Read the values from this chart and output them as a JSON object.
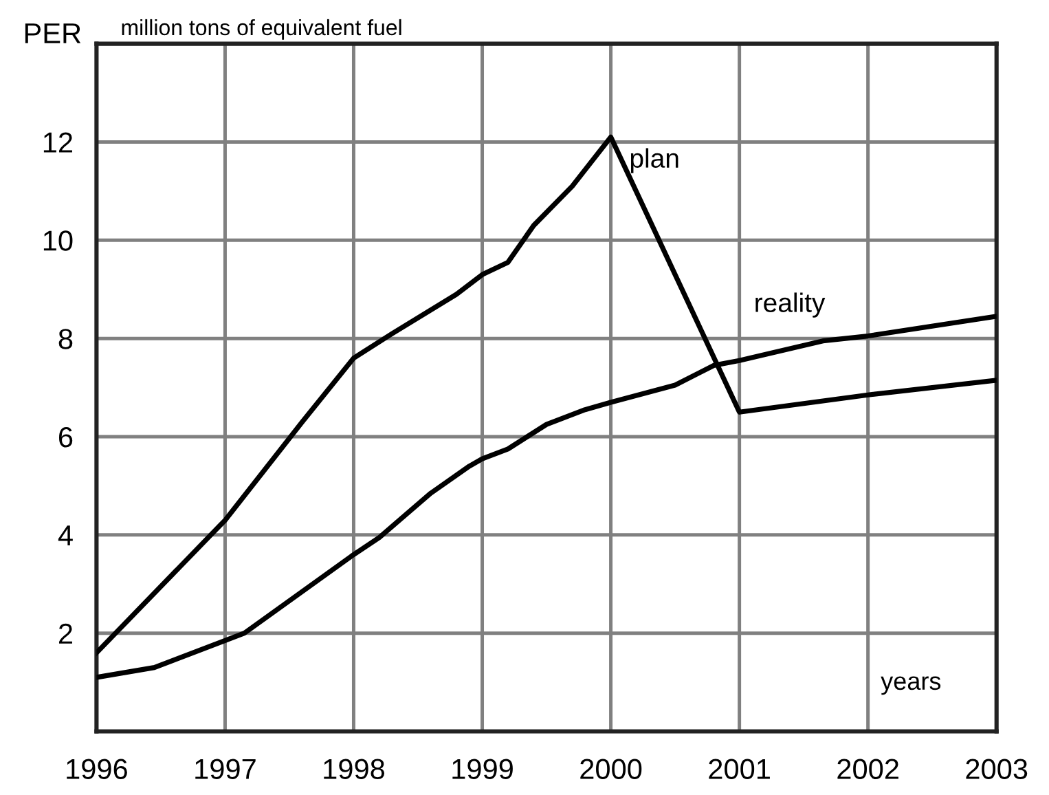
{
  "chart_data": {
    "type": "line",
    "ylabel": "PER",
    "subtitle": "million tons of equivalent fuel",
    "xlabel": "years",
    "xlim": [
      1996,
      2003
    ],
    "xticks": [
      1996,
      1997,
      1998,
      1999,
      2000,
      2001,
      2002,
      2003
    ],
    "ylim": [
      0,
      14
    ],
    "yticks": [
      {
        "value": 0,
        "label": null
      },
      2,
      4,
      6,
      8,
      10,
      12,
      {
        "value": 14,
        "label": null
      }
    ],
    "grid": true,
    "legend": false,
    "marker": "none",
    "line_style": "solid",
    "series": [
      {
        "name": "plan",
        "color": "#000000",
        "x": [
          1996,
          1997,
          1997.3,
          1997.6,
          1998,
          1998.3,
          1998.8,
          1999,
          1999.2,
          1999.4,
          1999.7,
          2000,
          2001,
          2002,
          2003
        ],
        "values": [
          1.6,
          4.3,
          5.3,
          6.3,
          7.6,
          8.1,
          8.9,
          9.3,
          9.55,
          10.3,
          11.1,
          12.1,
          6.5,
          6.85,
          7.15
        ]
      },
      {
        "name": "reality",
        "color": "#000000",
        "x": [
          1996,
          1996.45,
          1997,
          1997.15,
          1998,
          1998.2,
          1998.6,
          1998.9,
          1999,
          1999.2,
          1999.5,
          1999.8,
          2000,
          2000.5,
          2000.8,
          2001,
          2001.65,
          2002,
          2003
        ],
        "values": [
          1.1,
          1.3,
          1.85,
          2.0,
          3.6,
          3.95,
          4.85,
          5.4,
          5.55,
          5.75,
          6.25,
          6.55,
          6.7,
          7.05,
          7.45,
          7.55,
          7.95,
          8.05,
          8.45
        ]
      }
    ]
  }
}
